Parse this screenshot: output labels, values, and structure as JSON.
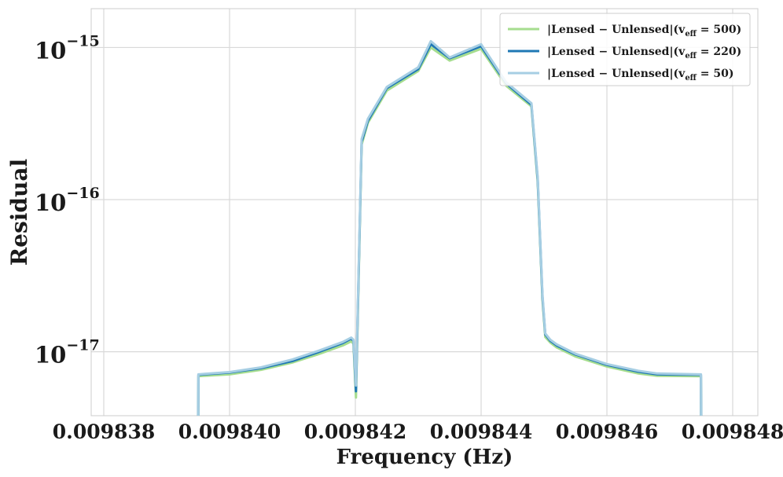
{
  "chart_data": {
    "type": "line",
    "xlabel": "Frequency (Hz)",
    "ylabel": "Residual",
    "xscale": "linear",
    "yscale": "log",
    "xlim": [
      0.0098378,
      0.0098484
    ],
    "ylim": [
      3.8e-18,
      1.8e-15
    ],
    "grid": true,
    "legend_position": "top-right",
    "x_ticks": [
      {
        "value": 0.009838,
        "label": "0.009838"
      },
      {
        "value": 0.00984,
        "label": "0.009840"
      },
      {
        "value": 0.009842,
        "label": "0.009842"
      },
      {
        "value": 0.009844,
        "label": "0.009844"
      },
      {
        "value": 0.009846,
        "label": "0.009846"
      },
      {
        "value": 0.009848,
        "label": "0.009848"
      }
    ],
    "y_ticks": [
      {
        "value": 1e-17,
        "base": "10",
        "exp": "−17"
      },
      {
        "value": 1e-16,
        "base": "10",
        "exp": "−16"
      },
      {
        "value": 1e-15,
        "base": "10",
        "exp": "−15"
      }
    ],
    "series": [
      {
        "name": "|Lensed − Unlensed|(v_eff = 500)",
        "legend_main": "|Lensed − Unlensed|(v",
        "legend_sub": "eff",
        "legend_tail": " = 500)",
        "color": "#a6dd8f",
        "x": [
          0.009839502,
          0.009839505,
          0.0098396,
          0.00984,
          0.0098405,
          0.009841,
          0.0098414,
          0.0098418,
          0.009841935,
          0.00984197,
          0.00984201,
          0.0098421,
          0.0098422,
          0.0098425,
          0.009843,
          0.0098432,
          0.0098435,
          0.009844,
          0.0098444,
          0.0098448,
          0.0098449,
          0.009844975,
          0.00984502,
          0.0098451,
          0.0098452,
          0.0098455,
          0.009846,
          0.0098465,
          0.0098468,
          0.009847495,
          0.009847498
        ],
        "y": [
          3.8e-18,
          6.9e-18,
          6.95e-18,
          7.1e-18,
          7.6e-18,
          8.5e-18,
          9.6e-18,
          1.1e-17,
          1.17e-17,
          1.13e-17,
          5e-18,
          2.3e-16,
          3.2e-16,
          5.2e-16,
          7e-16,
          1e-15,
          8.2e-16,
          9.8e-16,
          5.6e-16,
          4.1e-16,
          1.3e-16,
          2.2e-17,
          1.25e-17,
          1.15e-17,
          1.07e-17,
          9.3e-18,
          8e-18,
          7.2e-18,
          6.95e-18,
          6.9e-18,
          3.8e-18
        ]
      },
      {
        "name": "|Lensed − Unlensed|(v_eff = 220)",
        "legend_main": "|Lensed − Unlensed|(v",
        "legend_sub": "eff",
        "legend_tail": " = 220)",
        "color": "#1f78b4",
        "x": [
          0.009839502,
          0.009839505,
          0.0098396,
          0.00984,
          0.0098405,
          0.009841,
          0.0098414,
          0.0098418,
          0.009841935,
          0.00984197,
          0.00984201,
          0.0098421,
          0.0098422,
          0.0098425,
          0.009843,
          0.0098432,
          0.0098435,
          0.009844,
          0.0098444,
          0.0098448,
          0.0098449,
          0.009844975,
          0.00984502,
          0.0098451,
          0.0098452,
          0.0098455,
          0.009846,
          0.0098465,
          0.0098468,
          0.009847495,
          0.009847498
        ],
        "y": [
          3.8e-18,
          7.05e-18,
          7.1e-18,
          7.3e-18,
          7.8e-18,
          8.7e-18,
          9.9e-18,
          1.14e-17,
          1.22e-17,
          1.18e-17,
          5.5e-18,
          2.4e-16,
          3.3e-16,
          5.4e-16,
          7.2e-16,
          1.05e-15,
          8.5e-16,
          1.02e-15,
          5.8e-16,
          4.2e-16,
          1.35e-16,
          2.3e-17,
          1.3e-17,
          1.18e-17,
          1.1e-17,
          9.6e-18,
          8.2e-18,
          7.4e-18,
          7.1e-18,
          7.05e-18,
          3.8e-18
        ]
      },
      {
        "name": "|Lensed − Unlensed|(v_eff = 50)",
        "legend_main": "|Lensed − Unlensed|(v",
        "legend_sub": "eff",
        "legend_tail": " = 50)",
        "color": "#a6cee3",
        "x": [
          0.009839502,
          0.009839505,
          0.0098396,
          0.00984,
          0.0098405,
          0.009841,
          0.0098414,
          0.0098418,
          0.009841935,
          0.00984197,
          0.00984201,
          0.0098421,
          0.0098422,
          0.0098425,
          0.009843,
          0.0098432,
          0.0098435,
          0.009844,
          0.0098444,
          0.0098448,
          0.0098449,
          0.009844975,
          0.00984502,
          0.0098451,
          0.0098452,
          0.0098455,
          0.009846,
          0.0098465,
          0.0098468,
          0.009847495,
          0.009847498
        ],
        "y": [
          3.8e-18,
          7.1e-18,
          7.15e-18,
          7.35e-18,
          7.9e-18,
          8.9e-18,
          1.01e-17,
          1.16e-17,
          1.24e-17,
          1.2e-17,
          6e-18,
          2.5e-16,
          3.4e-16,
          5.5e-16,
          7.4e-16,
          1.1e-15,
          8.6e-16,
          1.05e-15,
          5.9e-16,
          4.3e-16,
          1.4e-16,
          2.4e-17,
          1.32e-17,
          1.2e-17,
          1.12e-17,
          9.7e-18,
          8.3e-18,
          7.5e-18,
          7.2e-18,
          7.1e-18,
          3.8e-18
        ]
      }
    ]
  }
}
